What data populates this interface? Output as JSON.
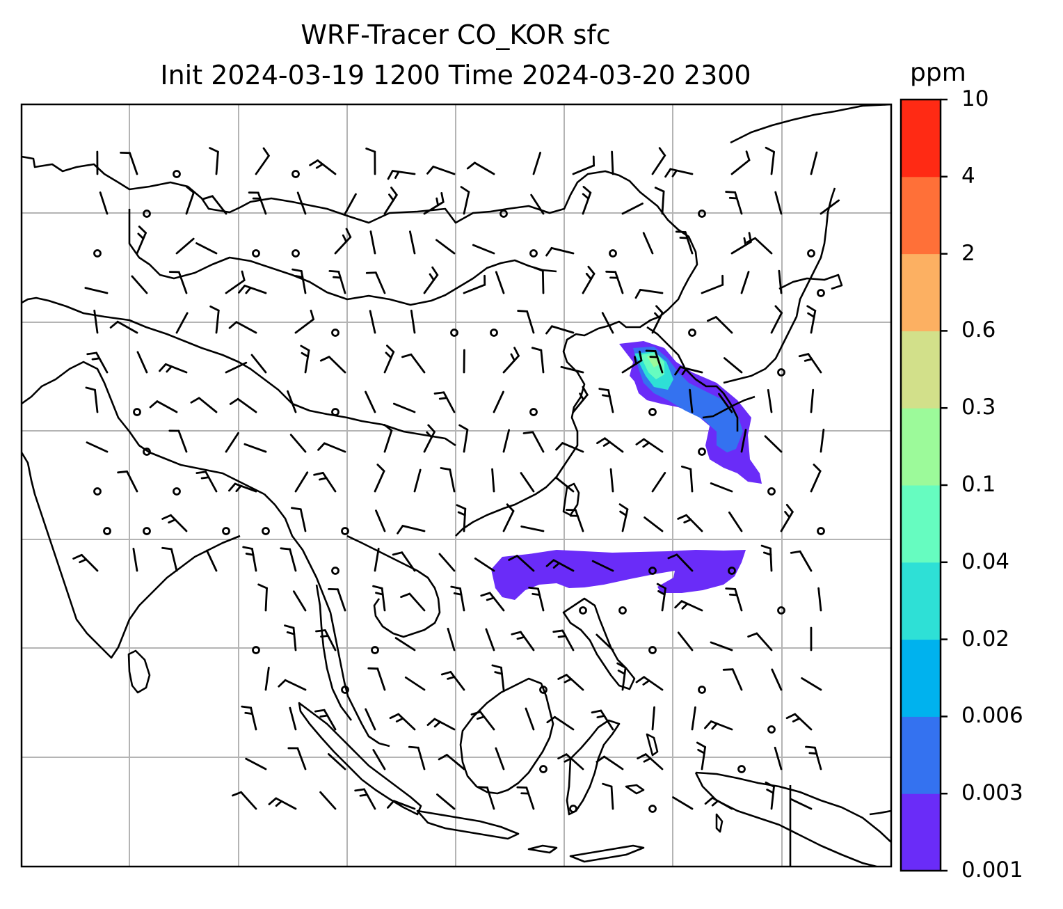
{
  "title": {
    "line1": "WRF-Tracer CO_KOR sfc",
    "line2": "Init 2024-03-19 1200 Time 2024-03-20 2300"
  },
  "colorbar": {
    "unit": "ppm",
    "ticks": [
      "0.001",
      "0.003",
      "0.006",
      "0.02",
      "0.04",
      "0.1",
      "0.3",
      "0.6",
      "2",
      "4",
      "10"
    ],
    "colors": [
      "#6a2cf8",
      "#3472f0",
      "#00b2ee",
      "#2ee0d6",
      "#66fcc0",
      "#9cfa9a",
      "#d2e08a",
      "#fcb062",
      "#ff7038",
      "#ff2a14"
    ]
  },
  "map": {
    "grid_color": "#b4b4b4",
    "plume_colors": {
      "low": "#6a2cf8",
      "mid": "#3472f0",
      "mid2": "#2ee0d6",
      "high": "#66fcc0",
      "peak": "#9cfa9a"
    }
  }
}
